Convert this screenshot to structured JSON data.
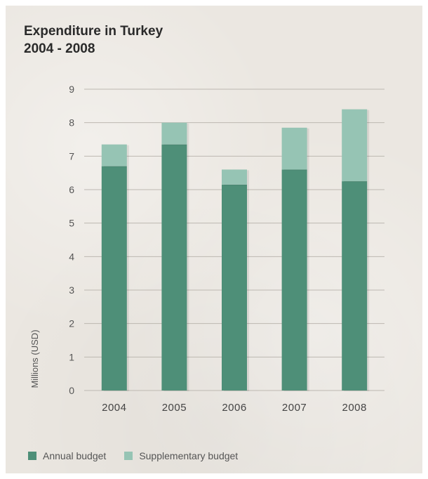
{
  "chart_data": {
    "type": "bar",
    "stacked": true,
    "title": "Expenditure in Turkey",
    "subtitle": "2004 - 2008",
    "categories": [
      "2004",
      "2005",
      "2006",
      "2007",
      "2008"
    ],
    "series": [
      {
        "name": "Annual budget",
        "values": [
          6.7,
          7.35,
          6.15,
          6.6,
          6.25
        ],
        "color": "#4e8f78"
      },
      {
        "name": "Supplementary budget",
        "values": [
          0.65,
          0.65,
          0.45,
          1.25,
          2.15
        ],
        "color": "#96c4b4"
      }
    ],
    "ylabel": "Millions (USD)",
    "xlabel": "",
    "ylim": [
      0,
      9
    ],
    "yticks": [
      0,
      1,
      2,
      3,
      4,
      5,
      6,
      7,
      8,
      9
    ],
    "grid": true,
    "legend_position": "bottom-left"
  }
}
